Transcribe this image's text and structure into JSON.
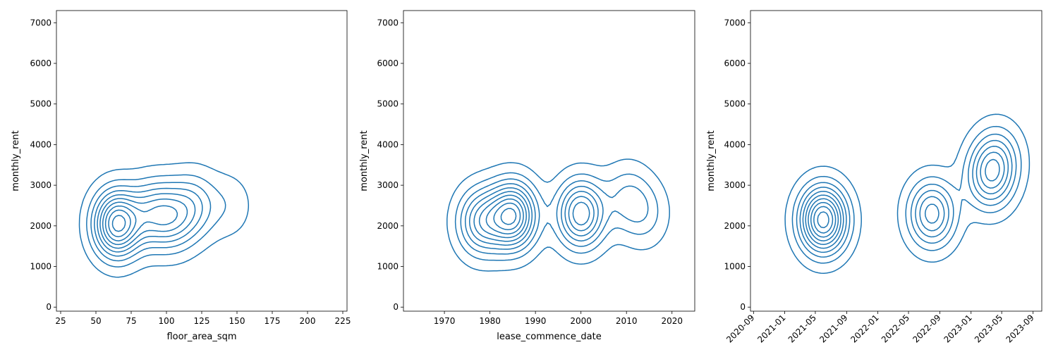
{
  "chart_data": [
    {
      "type": "kde-contour",
      "xlabel": "floor_area_sqm",
      "ylabel": "monthly_rent",
      "xlim": [
        22,
        228
      ],
      "ylim": [
        -100,
        7300
      ],
      "xticks": [
        25,
        50,
        75,
        100,
        125,
        150,
        175,
        200,
        225
      ],
      "yticks": [
        0,
        1000,
        2000,
        3000,
        4000,
        5000,
        6000,
        7000
      ],
      "xtick_labels": [
        "25",
        "50",
        "75",
        "100",
        "125",
        "150",
        "175",
        "200",
        "225"
      ],
      "ytick_labels": [
        "0",
        "1000",
        "2000",
        "3000",
        "4000",
        "5000",
        "6000",
        "7000"
      ],
      "grid": false,
      "color": "#1f77b4",
      "contour_levels": 10,
      "density_peaks": [
        {
          "x": 65,
          "y": 2050,
          "w": 1.0
        },
        {
          "x": 90,
          "y": 2300,
          "w": 0.45
        },
        {
          "x": 105,
          "y": 2200,
          "w": 0.4
        },
        {
          "x": 120,
          "y": 2500,
          "w": 0.3
        },
        {
          "x": 145,
          "y": 2500,
          "w": 0.12
        }
      ]
    },
    {
      "type": "kde-contour",
      "xlabel": "lease_commence_date",
      "ylabel": "monthly_rent",
      "xlim": [
        1961,
        2025
      ],
      "ylim": [
        -100,
        7300
      ],
      "xticks": [
        1970,
        1980,
        1990,
        2000,
        2010,
        2020
      ],
      "yticks": [
        0,
        1000,
        2000,
        3000,
        4000,
        5000,
        6000,
        7000
      ],
      "xtick_labels": [
        "1970",
        "1980",
        "1990",
        "2000",
        "2010",
        "2020"
      ],
      "ytick_labels": [
        "0",
        "1000",
        "2000",
        "3000",
        "4000",
        "5000",
        "6000",
        "7000"
      ],
      "grid": false,
      "color": "#1f77b4",
      "contour_levels": 10,
      "density_peaks": [
        {
          "x": 1985,
          "y": 2250,
          "w": 1.0
        },
        {
          "x": 1978,
          "y": 2100,
          "w": 0.6
        },
        {
          "x": 2000,
          "y": 2300,
          "w": 0.8
        },
        {
          "x": 2010,
          "y": 2700,
          "w": 0.25
        },
        {
          "x": 2014,
          "y": 2300,
          "w": 0.2
        }
      ]
    },
    {
      "type": "kde-contour",
      "xlabel": "",
      "ylabel": "monthly_rent",
      "xlim": [
        "2020-08-20",
        "2023-10-05"
      ],
      "ylim": [
        -100,
        7300
      ],
      "xticks": [
        "2020-09-01",
        "2021-01-01",
        "2021-05-01",
        "2021-09-01",
        "2022-01-01",
        "2022-05-01",
        "2022-09-01",
        "2023-01-01",
        "2023-05-01",
        "2023-09-01"
      ],
      "xtick_labels": [
        "2020-09",
        "2021-01",
        "2021-05",
        "2021-09",
        "2022-01",
        "2022-05",
        "2022-09",
        "2023-01",
        "2023-05",
        "2023-09"
      ],
      "yticks": [
        0,
        1000,
        2000,
        3000,
        4000,
        5000,
        6000,
        7000
      ],
      "ytick_labels": [
        "0",
        "1000",
        "2000",
        "3000",
        "4000",
        "5000",
        "6000",
        "7000"
      ],
      "grid": false,
      "color": "#1f77b4",
      "contour_levels": 10,
      "density_peaks": [
        {
          "x": "2021-06-01",
          "y": 2150,
          "w": 1.0
        },
        {
          "x": "2022-08-01",
          "y": 2300,
          "w": 0.6
        },
        {
          "x": "2023-03-15",
          "y": 3200,
          "w": 0.5
        },
        {
          "x": "2023-04-15",
          "y": 3700,
          "w": 0.3
        }
      ]
    }
  ]
}
